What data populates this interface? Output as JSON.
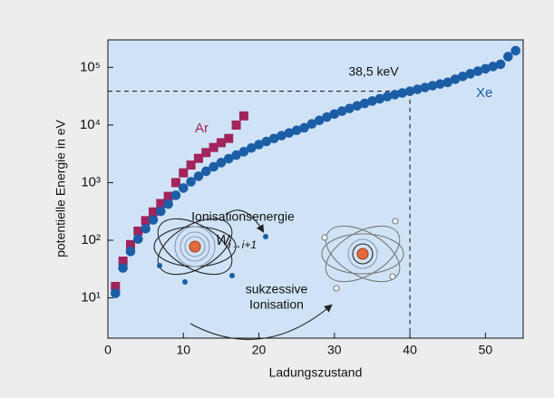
{
  "chart_data": {
    "type": "scatter",
    "xlabel": "Ladungszustand",
    "ylabel": "potentielle Energie in eV",
    "xlim": [
      0,
      55
    ],
    "xticks": [
      0,
      10,
      20,
      30,
      40,
      50
    ],
    "ylim": [
      2,
      300000
    ],
    "log_y": true,
    "yticks": [
      {
        "value": 10,
        "label": "10¹"
      },
      {
        "value": 100,
        "label": "10²"
      },
      {
        "value": 1000,
        "label": "10³"
      },
      {
        "value": 10000,
        "label": "10⁴"
      },
      {
        "value": 100000,
        "label": "10⁵"
      }
    ],
    "series": [
      {
        "name": "Ar",
        "color": "#a3235c",
        "marker": "square",
        "x": [
          1,
          2,
          3,
          4,
          5,
          6,
          7,
          8,
          9,
          10,
          11,
          12,
          13,
          14,
          15,
          16,
          17,
          18
        ],
        "values": [
          15.8,
          43.4,
          84.1,
          143.9,
          219,
          310,
          434,
          578,
          1000,
          1479,
          2018,
          2636,
          3322,
          4078,
          4933,
          5851,
          9971,
          14398
        ]
      },
      {
        "name": "Xe",
        "color": "#1c5ea6",
        "marker": "circle",
        "x": [
          1,
          2,
          3,
          4,
          5,
          6,
          7,
          8,
          9,
          10,
          11,
          12,
          13,
          14,
          15,
          16,
          17,
          18,
          19,
          20,
          21,
          22,
          23,
          24,
          25,
          26,
          27,
          28,
          29,
          30,
          31,
          32,
          33,
          34,
          35,
          36,
          37,
          38,
          39,
          40,
          41,
          42,
          43,
          44,
          45,
          46,
          47,
          48,
          49,
          50,
          51,
          52,
          53,
          54
        ],
        "values": [
          12,
          33,
          64,
          105,
          159,
          226,
          318,
          424,
          604,
          806,
          1035,
          1290,
          1571,
          1885,
          2228,
          2602,
          3006,
          3440,
          3989,
          4571,
          5187,
          5837,
          6537,
          7273,
          8091,
          8948,
          10441,
          12018,
          13719,
          15513,
          17393,
          19378,
          21476,
          23685,
          26047,
          28502,
          31102,
          33600,
          36000,
          38500,
          41600,
          44800,
          48100,
          51500,
          55000,
          62200,
          69700,
          77600,
          85900,
          94600,
          103700,
          113300,
          153600,
          194900
        ]
      }
    ],
    "annotations": [
      "38,5 keV",
      "Ionisationsenergie",
      "W",
      "i→i+1",
      "sukzessive",
      "Ionisation"
    ]
  }
}
